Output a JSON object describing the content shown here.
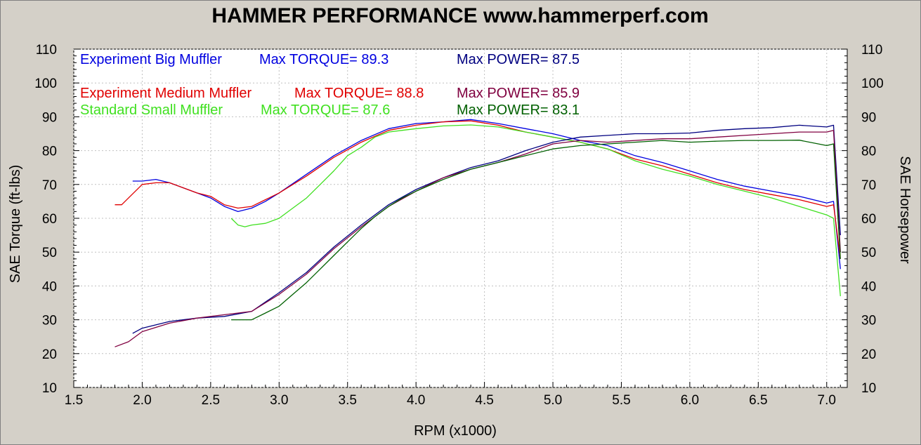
{
  "chart_data": {
    "type": "line",
    "title": "HAMMER PERFORMANCE www.hammerperf.com",
    "xlabel": "RPM (x1000)",
    "ylabel_left": "SAE Torque (ft-lbs)",
    "ylabel_right": "SAE Horsepower",
    "xlim": [
      1.5,
      7.15
    ],
    "ylim": [
      10,
      110
    ],
    "x_ticks": [
      "1.5",
      "2.0",
      "2.5",
      "3.0",
      "3.5",
      "4.0",
      "4.5",
      "5.0",
      "5.5",
      "6.0",
      "6.5",
      "7.0"
    ],
    "x_tick_values": [
      1.5,
      2.0,
      2.5,
      3.0,
      3.5,
      4.0,
      4.5,
      5.0,
      5.5,
      6.0,
      6.5,
      7.0
    ],
    "y_ticks": [
      "10",
      "20",
      "30",
      "40",
      "50",
      "60",
      "70",
      "80",
      "90",
      "100",
      "110"
    ],
    "y_tick_values": [
      10,
      20,
      30,
      40,
      50,
      60,
      70,
      80,
      90,
      100,
      110
    ],
    "grid": true,
    "legend_position": "top-left",
    "legend": [
      {
        "name": "Experiment Big Muffler",
        "torque_label": "Max TORQUE= 89.3",
        "power_label": "Max POWER= 87.5",
        "name_color": "#0000e0",
        "power_color": "#000080"
      },
      {
        "name": "Experiment Medium Muffler",
        "torque_label": "Max TORQUE= 88.8",
        "power_label": "Max POWER= 85.9",
        "name_color": "#e00000",
        "power_color": "#800040"
      },
      {
        "name": "Standard Small Muffler",
        "torque_label": "Max TORQUE= 87.6",
        "power_label": "Max POWER= 83.1",
        "name_color": "#40e020",
        "power_color": "#006000"
      }
    ],
    "series": [
      {
        "name": "Experiment Big Muffler",
        "kind": "torque",
        "color": "#0000e0",
        "x": [
          1.93,
          2.0,
          2.1,
          2.2,
          2.3,
          2.4,
          2.5,
          2.6,
          2.7,
          2.8,
          2.9,
          3.0,
          3.2,
          3.4,
          3.6,
          3.8,
          4.0,
          4.2,
          4.4,
          4.6,
          4.8,
          5.0,
          5.2,
          5.4,
          5.6,
          5.8,
          6.0,
          6.2,
          6.4,
          6.6,
          6.8,
          7.0,
          7.05,
          7.1
        ],
        "y": [
          71,
          71,
          71.5,
          70.5,
          69,
          67.5,
          66,
          63.5,
          62,
          63,
          65,
          67.5,
          73,
          78.5,
          83,
          86.5,
          88,
          88.5,
          89.2,
          88,
          86.5,
          85,
          83,
          81.5,
          78.5,
          76.5,
          74,
          71.5,
          69.5,
          68,
          66.5,
          64.5,
          65,
          45
        ]
      },
      {
        "name": "Experiment Medium Muffler",
        "kind": "torque",
        "color": "#e00000",
        "x": [
          1.8,
          1.85,
          1.9,
          2.0,
          2.1,
          2.2,
          2.3,
          2.4,
          2.5,
          2.6,
          2.7,
          2.8,
          2.9,
          3.0,
          3.2,
          3.4,
          3.6,
          3.8,
          4.0,
          4.2,
          4.4,
          4.6,
          4.8,
          5.0,
          5.2,
          5.4,
          5.6,
          5.8,
          6.0,
          6.2,
          6.4,
          6.6,
          6.8,
          7.0,
          7.05,
          7.1
        ],
        "y": [
          64,
          64,
          66,
          70,
          70.5,
          70.5,
          69,
          67.5,
          66.5,
          64,
          63,
          63.5,
          65.5,
          67.5,
          72.5,
          78,
          82.5,
          86,
          87.5,
          88.5,
          88.8,
          87.5,
          85.5,
          84,
          82.5,
          80.5,
          77.5,
          75.5,
          73,
          70.5,
          68.5,
          67,
          65.5,
          63.5,
          64,
          48
        ]
      },
      {
        "name": "Standard Small Muffler",
        "kind": "torque",
        "color": "#40e020",
        "x": [
          2.65,
          2.7,
          2.75,
          2.8,
          2.9,
          3.0,
          3.1,
          3.2,
          3.3,
          3.4,
          3.5,
          3.6,
          3.7,
          3.8,
          3.9,
          4.0,
          4.2,
          4.4,
          4.6,
          4.8,
          5.0,
          5.2,
          5.4,
          5.6,
          5.8,
          6.0,
          6.2,
          6.4,
          6.6,
          6.8,
          7.0,
          7.05,
          7.1
        ],
        "y": [
          60,
          58,
          57.5,
          58,
          58.5,
          60,
          63,
          66,
          70,
          74,
          78.5,
          81,
          84,
          85.5,
          86,
          86.5,
          87.3,
          87.6,
          87,
          85.5,
          84,
          82.5,
          80.5,
          77,
          74.5,
          72.5,
          70,
          68,
          66,
          63.5,
          61,
          60,
          37
        ]
      },
      {
        "name": "Experiment Big Muffler",
        "kind": "power",
        "color": "#000080",
        "x": [
          1.93,
          2.0,
          2.2,
          2.4,
          2.6,
          2.8,
          3.0,
          3.2,
          3.4,
          3.6,
          3.8,
          4.0,
          4.2,
          4.4,
          4.6,
          4.8,
          5.0,
          5.2,
          5.4,
          5.6,
          5.8,
          6.0,
          6.2,
          6.4,
          6.6,
          6.8,
          7.0,
          7.05,
          7.1
        ],
        "y": [
          26,
          27.5,
          29.5,
          30.5,
          31,
          32.5,
          38,
          44,
          51.5,
          58,
          64,
          68.5,
          72,
          75,
          77,
          80,
          82.5,
          84,
          84.5,
          85,
          85,
          85.2,
          86,
          86.5,
          86.8,
          87.5,
          87,
          87.5,
          55
        ]
      },
      {
        "name": "Experiment Medium Muffler",
        "kind": "power",
        "color": "#800040",
        "x": [
          1.8,
          1.9,
          2.0,
          2.2,
          2.4,
          2.6,
          2.8,
          3.0,
          3.2,
          3.4,
          3.6,
          3.8,
          4.0,
          4.2,
          4.4,
          4.6,
          4.8,
          5.0,
          5.2,
          5.4,
          5.6,
          5.8,
          6.0,
          6.2,
          6.4,
          6.6,
          6.8,
          7.0,
          7.05,
          7.1
        ],
        "y": [
          22,
          23.5,
          26.5,
          29,
          30.5,
          31.5,
          32.5,
          37.5,
          43.5,
          51,
          57.5,
          63.5,
          68,
          72,
          74.5,
          76.5,
          79,
          82,
          83,
          82.5,
          83,
          83.5,
          83.5,
          84,
          84.5,
          85,
          85.5,
          85.5,
          86,
          50
        ]
      },
      {
        "name": "Standard Small Muffler",
        "kind": "power",
        "color": "#006000",
        "x": [
          2.65,
          2.7,
          2.8,
          2.9,
          3.0,
          3.1,
          3.2,
          3.3,
          3.4,
          3.5,
          3.6,
          3.7,
          3.8,
          3.9,
          4.0,
          4.2,
          4.4,
          4.6,
          4.8,
          5.0,
          5.2,
          5.4,
          5.6,
          5.8,
          6.0,
          6.2,
          6.4,
          6.6,
          6.8,
          7.0,
          7.05,
          7.1
        ],
        "y": [
          30,
          30,
          30,
          32,
          34,
          37.5,
          41,
          45,
          49,
          53,
          57,
          60.5,
          63.5,
          66,
          68,
          71.5,
          74.5,
          76.5,
          78.5,
          80.5,
          81.5,
          82,
          82.5,
          83,
          82.5,
          82.8,
          83,
          83,
          83.1,
          81.5,
          82,
          48
        ]
      }
    ]
  }
}
